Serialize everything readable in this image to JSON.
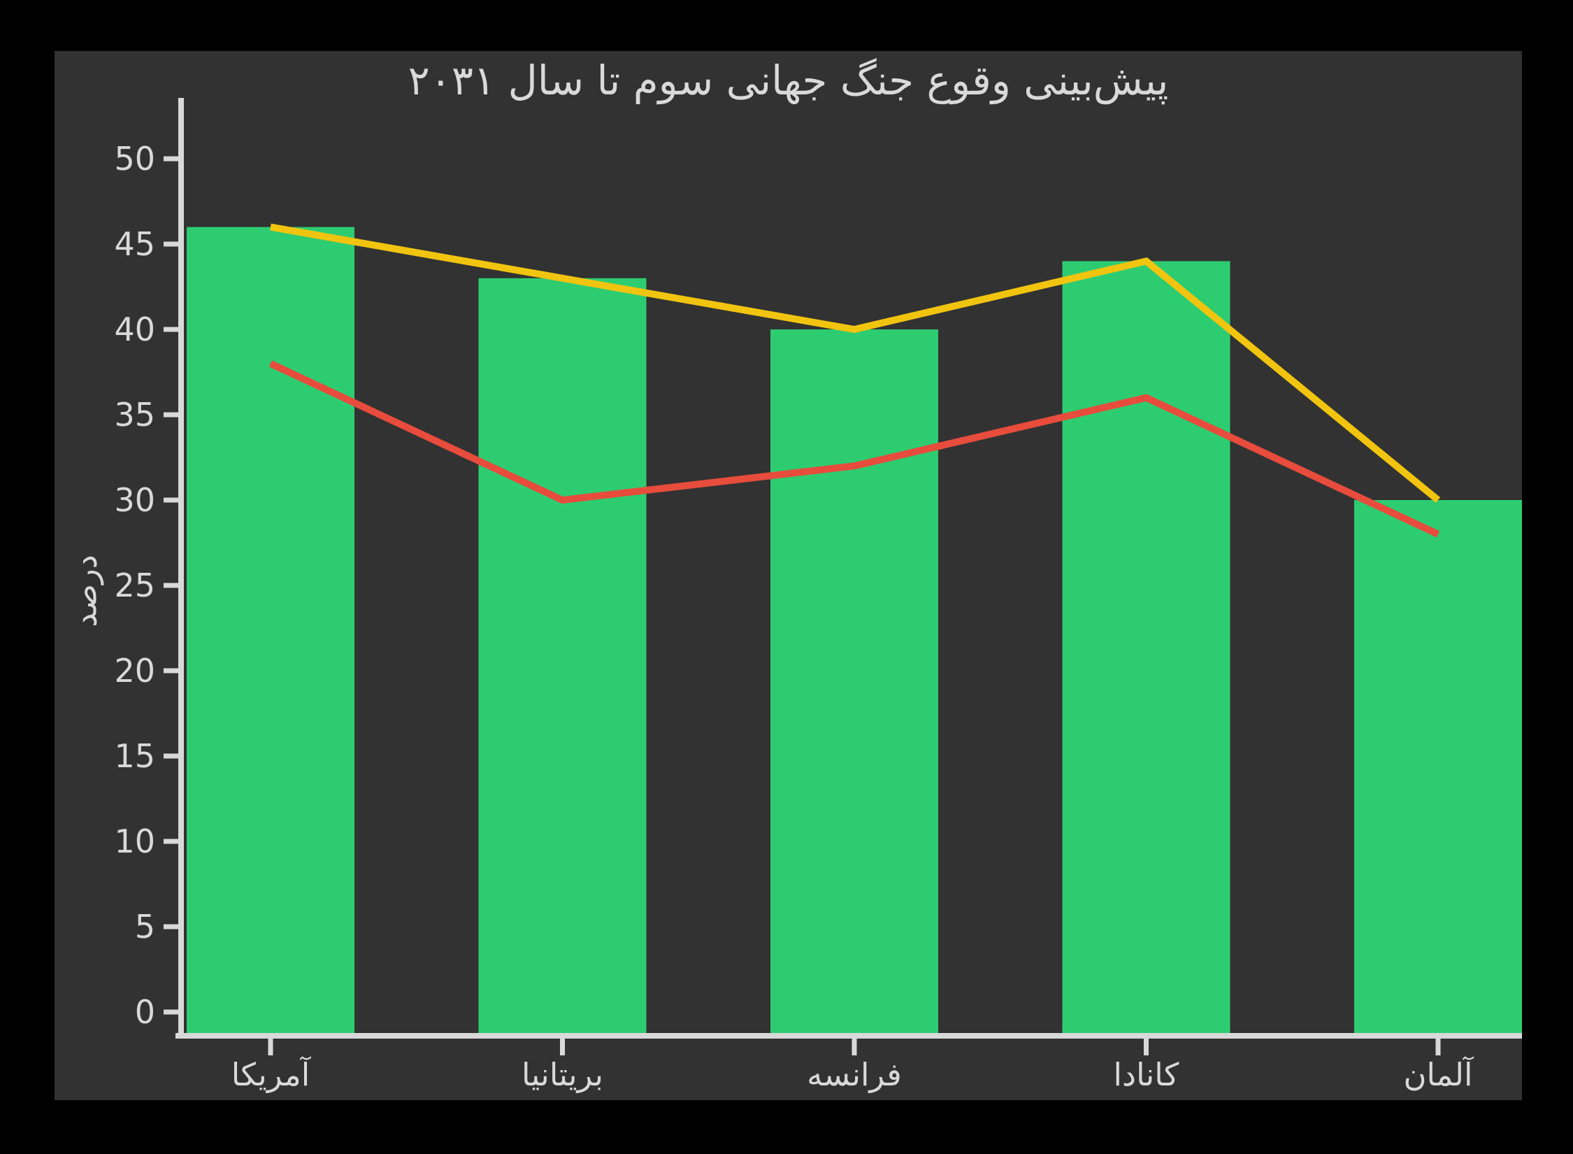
{
  "title": "پیش‌بینی وقوع جنگ جهانی سوم تا سال ۲۰۳۱",
  "colors": {
    "page_background": "#000000",
    "panel_background": "#323232",
    "axis": "#d9d9d9",
    "text": "#d9d9d9",
    "bar_green": "#2ecc71",
    "line_yellow": "#f1c40f",
    "line_red": "#e74c3c"
  },
  "chart_data": {
    "type": "bar",
    "title": "پیش‌بینی وقوع جنگ جهانی سوم تا سال ۲۰۳۱",
    "xlabel": "",
    "ylabel": "درصد",
    "categories": [
      "آمریکا",
      "بریتانیا",
      "فرانسه",
      "کانادا",
      "آلمان"
    ],
    "series": [
      {
        "name": "bars",
        "type": "bar",
        "color": "#2ecc71",
        "values": [
          46,
          43,
          40,
          44,
          30
        ]
      },
      {
        "name": "yellow-line",
        "type": "line",
        "color": "#f1c40f",
        "values": [
          46,
          43,
          40,
          44,
          30
        ]
      },
      {
        "name": "red-line",
        "type": "line",
        "color": "#e74c3c",
        "values": [
          38,
          30,
          32,
          36,
          28
        ]
      }
    ],
    "ylim": [
      0,
      50
    ],
    "yticks": [
      "0",
      "5",
      "10",
      "15",
      "20",
      "25",
      "30",
      "35",
      "40",
      "45",
      "50"
    ],
    "grid": false,
    "legend": false,
    "direction": "rtl-labels"
  }
}
